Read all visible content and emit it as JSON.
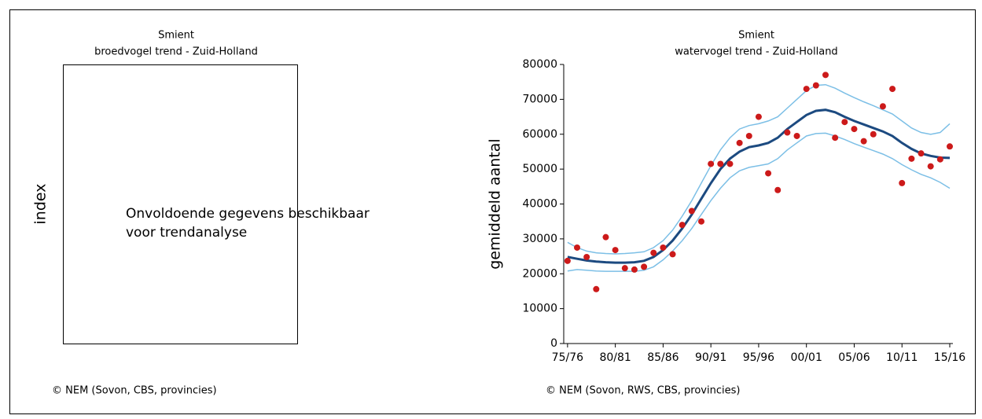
{
  "chart_data": [
    {
      "type": "empty",
      "title": "Smient",
      "subtitle": "broedvogel trend - Zuid-Holland",
      "ylabel": "index",
      "message": [
        "Onvoldoende gegevens beschikbaar",
        "voor trendanalyse"
      ],
      "source": "© NEM (Sovon, CBS, provincies)"
    },
    {
      "type": "line",
      "title": "Smient",
      "subtitle": "watervogel trend - Zuid-Holland",
      "ylabel": "gemiddeld aantal",
      "source": "© NEM (Sovon, RWS, CBS, provincies)",
      "x": [
        1975,
        1976,
        1977,
        1978,
        1979,
        1980,
        1981,
        1982,
        1983,
        1984,
        1985,
        1986,
        1987,
        1988,
        1989,
        1990,
        1991,
        1992,
        1993,
        1994,
        1995,
        1996,
        1997,
        1998,
        1999,
        2000,
        2001,
        2002,
        2003,
        2004,
        2005,
        2006,
        2007,
        2008,
        2009,
        2010,
        2011,
        2012,
        2013,
        2014,
        2015
      ],
      "xlim": [
        1974.6,
        2015.33
      ],
      "xticks": [
        {
          "value": 1975,
          "label": "75/76"
        },
        {
          "value": 1980,
          "label": "80/81"
        },
        {
          "value": 1985,
          "label": "85/86"
        },
        {
          "value": 1990,
          "label": "90/91"
        },
        {
          "value": 1995,
          "label": "95/96"
        },
        {
          "value": 2000,
          "label": "00/01"
        },
        {
          "value": 2005,
          "label": "05/06"
        },
        {
          "value": 2010,
          "label": "10/11"
        },
        {
          "value": 2015,
          "label": "15/16"
        }
      ],
      "ylim": [
        0,
        80000
      ],
      "yticks": [
        0,
        10000,
        20000,
        30000,
        40000,
        50000,
        60000,
        70000,
        80000
      ],
      "series": [
        {
          "style": "line",
          "color": "#7cbfe6",
          "values": [
            29000,
            27500,
            26500,
            26000,
            25800,
            25700,
            25800,
            26000,
            26300,
            27500,
            29500,
            32500,
            36500,
            41000,
            46000,
            51000,
            55500,
            59000,
            61500,
            62500,
            63000,
            63800,
            65000,
            67500,
            70000,
            72500,
            74000,
            74200,
            73200,
            71800,
            70500,
            69300,
            68200,
            67000,
            65800,
            63800,
            61800,
            60500,
            60000,
            60500,
            63000
          ]
        },
        {
          "style": "line",
          "color": "#7cbfe6",
          "values": [
            20800,
            21200,
            21000,
            20800,
            20700,
            20700,
            20700,
            20700,
            21000,
            22000,
            24000,
            26500,
            29500,
            33000,
            37000,
            41000,
            44500,
            47500,
            49500,
            50500,
            51000,
            51500,
            53000,
            55500,
            57500,
            59500,
            60200,
            60300,
            59500,
            58500,
            57300,
            56300,
            55300,
            54300,
            53000,
            51300,
            49800,
            48500,
            47500,
            46200,
            44500
          ]
        },
        {
          "style": "thick",
          "color": "#1c4a80",
          "values": [
            24800,
            24300,
            23800,
            23500,
            23300,
            23200,
            23200,
            23300,
            23700,
            24800,
            26800,
            29500,
            33000,
            37000,
            41500,
            46000,
            50000,
            53000,
            55000,
            56300,
            56800,
            57500,
            59000,
            61500,
            63500,
            65500,
            66700,
            67000,
            66300,
            65000,
            63800,
            62800,
            61800,
            60800,
            59500,
            57500,
            55800,
            54500,
            53800,
            53300,
            53200
          ]
        },
        {
          "style": "points",
          "color": "#cc1a1a",
          "values": [
            23700,
            27500,
            24800,
            15600,
            30500,
            26800,
            21600,
            21200,
            22000,
            26000,
            27500,
            25600,
            34000,
            38000,
            35000,
            51500,
            51500,
            51500,
            57500,
            59500,
            65000,
            48800,
            44000,
            60500,
            59500,
            73000,
            74000,
            77000,
            59000,
            63500,
            61500,
            58000,
            60000,
            68000,
            73000,
            46000,
            53000,
            54500,
            50800,
            52800,
            56500
          ]
        }
      ]
    }
  ]
}
